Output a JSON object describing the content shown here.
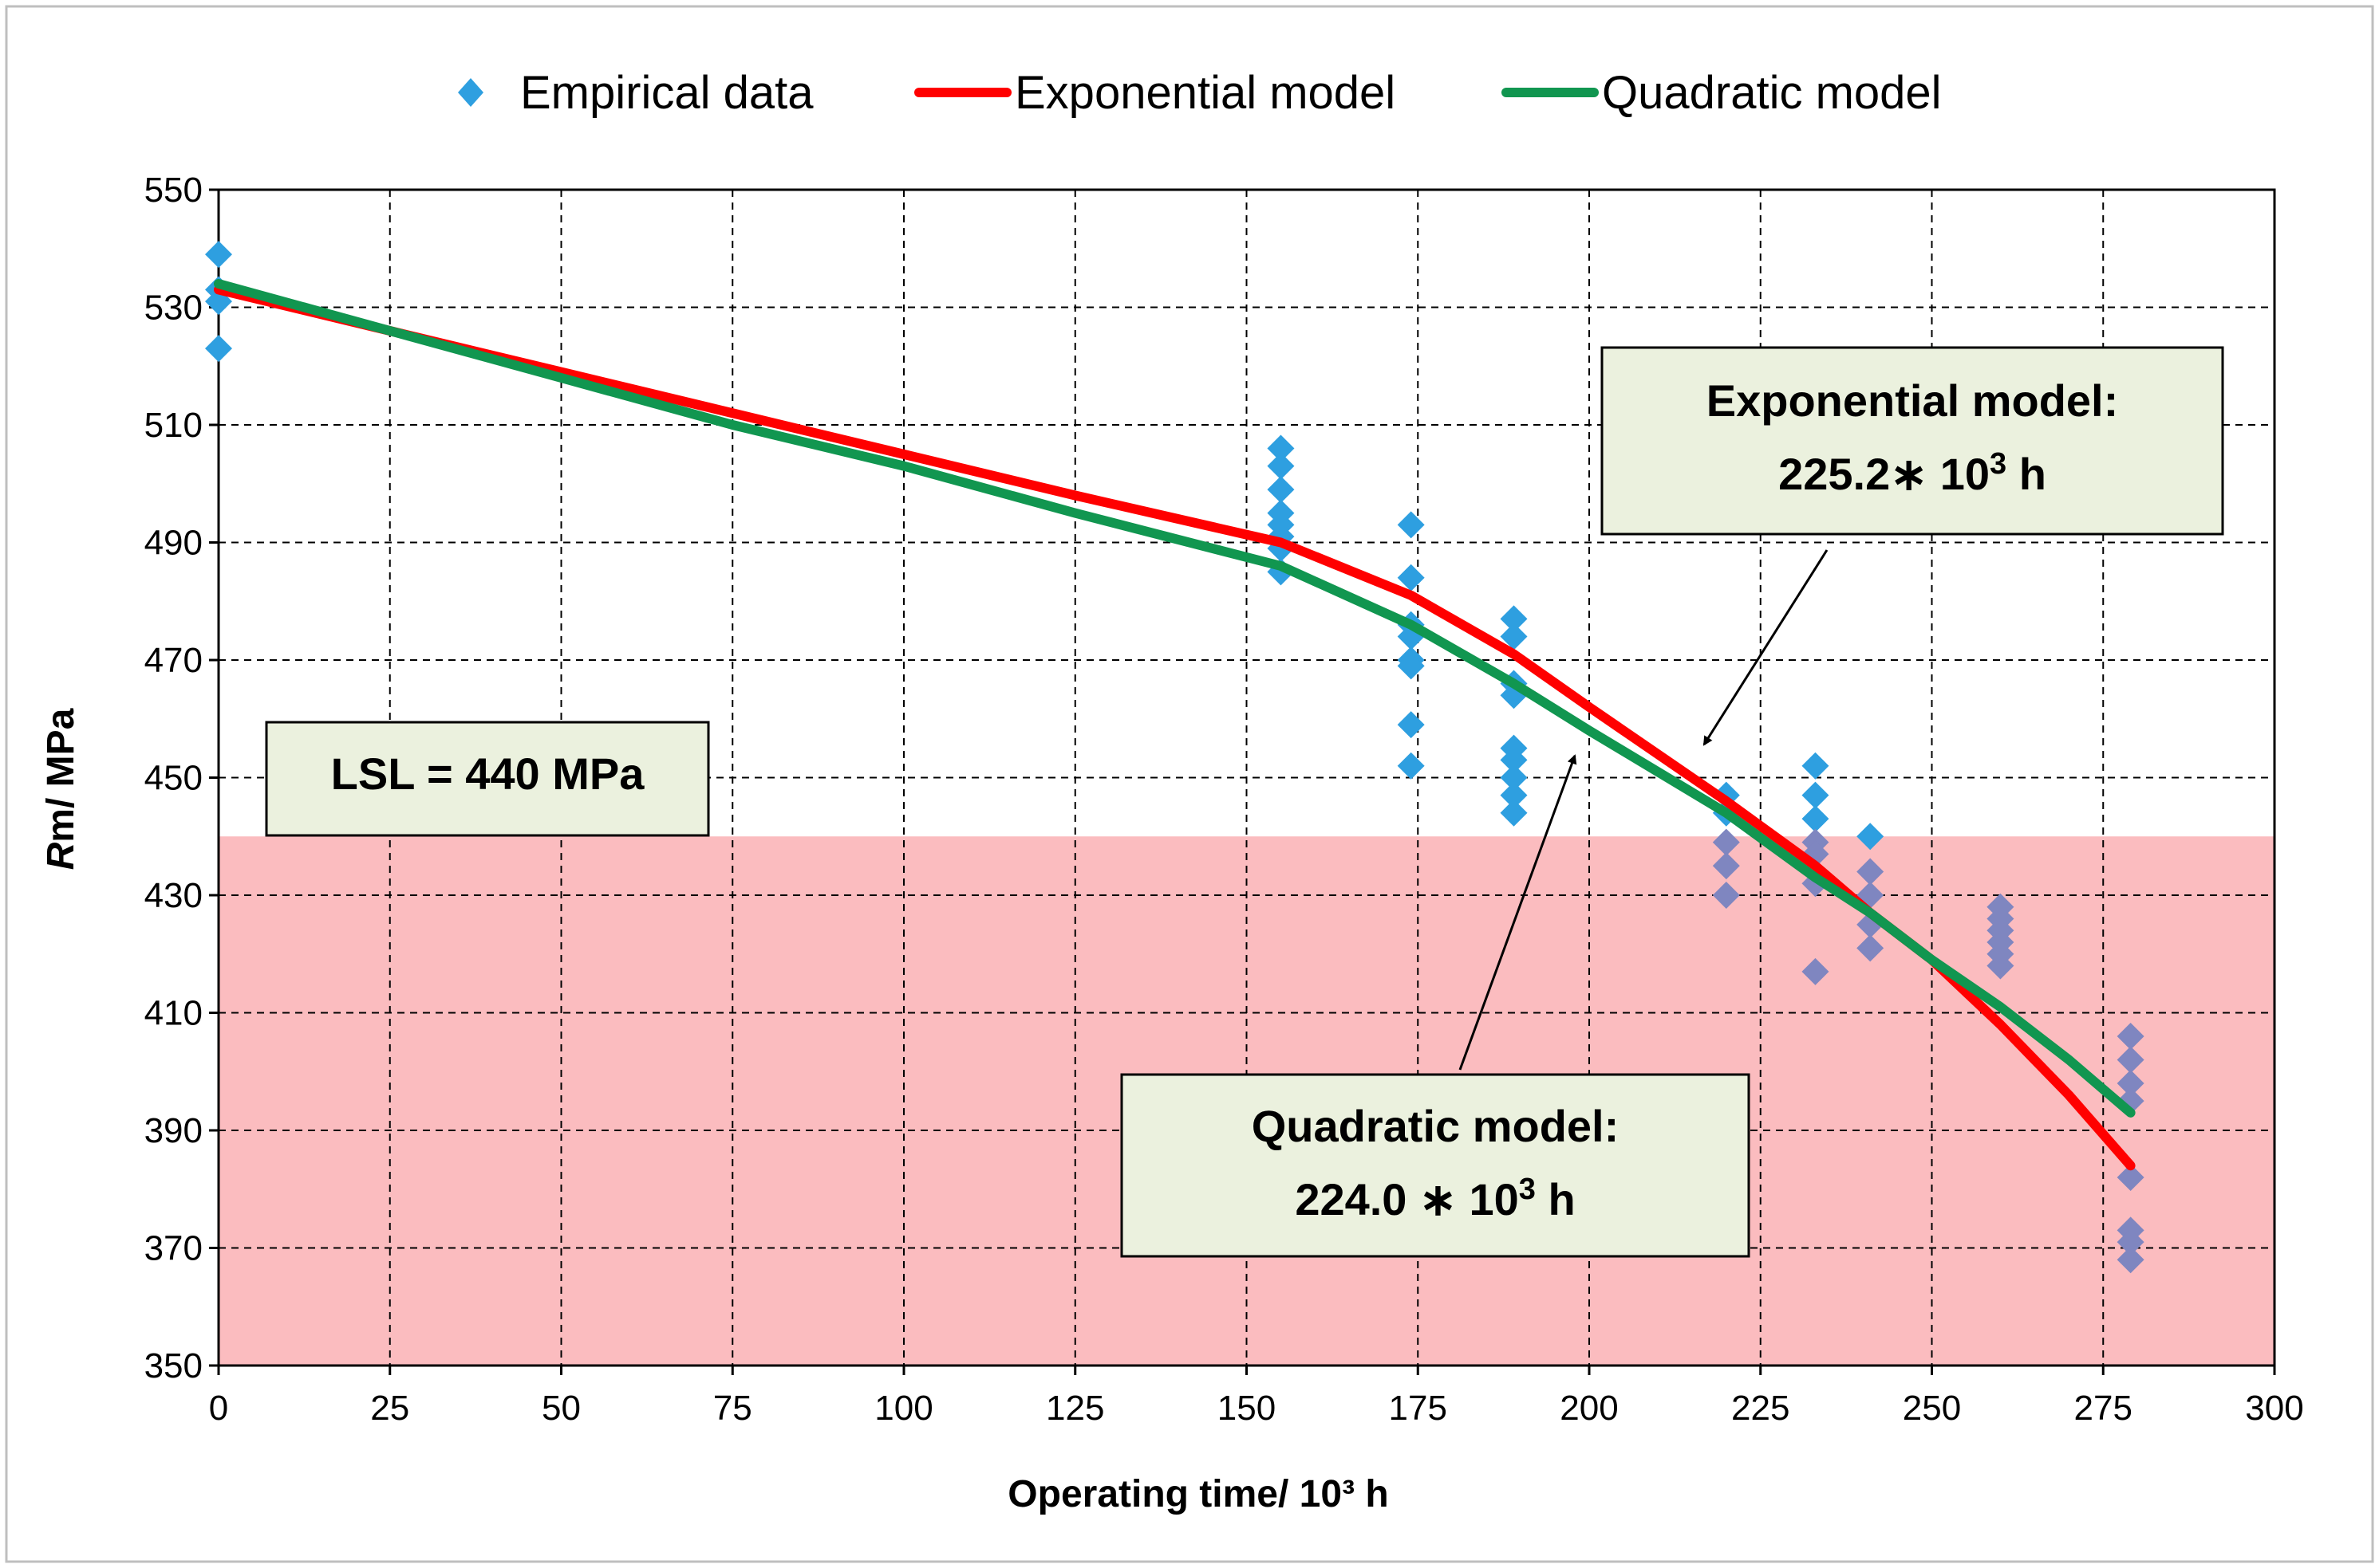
{
  "chart_data": {
    "type": "scatter",
    "xlabel": "Operating time/ 10³ h",
    "ylabel_italic": "R",
    "ylabel_rest": "m/ MPa",
    "xlim": [
      0,
      300
    ],
    "ylim": [
      350,
      550
    ],
    "x_ticks": [
      0,
      25,
      50,
      75,
      100,
      125,
      150,
      175,
      200,
      225,
      250,
      275,
      300
    ],
    "y_ticks": [
      350,
      370,
      390,
      410,
      430,
      450,
      470,
      490,
      510,
      530,
      550
    ],
    "grid": true,
    "legend_position": "top",
    "lsl_value": 440,
    "colors": {
      "empirical": "#2e9fe0",
      "empirical_below_lsl": "#7f86c0",
      "exponential": "#ff0000",
      "quadratic": "#119650",
      "lsl_band": "#fbbcbf",
      "box_fill": "#ebf1de"
    },
    "series": [
      {
        "name": "Empirical data",
        "kind": "points",
        "points": [
          [
            0,
            539
          ],
          [
            0,
            533
          ],
          [
            0,
            531
          ],
          [
            0,
            523
          ],
          [
            155,
            506
          ],
          [
            155,
            503
          ],
          [
            155,
            499
          ],
          [
            155,
            495
          ],
          [
            155,
            493
          ],
          [
            155,
            491
          ],
          [
            155,
            489
          ],
          [
            155,
            485
          ],
          [
            174,
            493
          ],
          [
            174,
            484
          ],
          [
            174,
            476
          ],
          [
            174,
            474
          ],
          [
            174,
            470
          ],
          [
            174,
            469
          ],
          [
            174,
            459
          ],
          [
            174,
            452
          ],
          [
            189,
            477
          ],
          [
            189,
            474
          ],
          [
            189,
            466
          ],
          [
            189,
            464
          ],
          [
            189,
            455
          ],
          [
            189,
            453
          ],
          [
            189,
            450
          ],
          [
            189,
            447
          ],
          [
            189,
            444
          ],
          [
            220,
            447
          ],
          [
            220,
            444
          ],
          [
            220,
            439
          ],
          [
            220,
            435
          ],
          [
            220,
            430
          ],
          [
            233,
            452
          ],
          [
            233,
            447
          ],
          [
            233,
            443
          ],
          [
            233,
            439
          ],
          [
            233,
            437
          ],
          [
            233,
            432
          ],
          [
            233,
            417
          ],
          [
            241,
            440
          ],
          [
            241,
            434
          ],
          [
            241,
            430
          ],
          [
            241,
            425
          ],
          [
            241,
            421
          ],
          [
            260,
            428
          ],
          [
            260,
            426
          ],
          [
            260,
            424
          ],
          [
            260,
            422
          ],
          [
            260,
            420
          ],
          [
            260,
            418
          ],
          [
            279,
            406
          ],
          [
            279,
            402
          ],
          [
            279,
            398
          ],
          [
            279,
            395
          ],
          [
            279,
            382
          ],
          [
            279,
            373
          ],
          [
            279,
            371
          ],
          [
            279,
            368
          ]
        ]
      },
      {
        "name": "Exponential model",
        "kind": "line",
        "points": [
          [
            0,
            533
          ],
          [
            25,
            526
          ],
          [
            50,
            519
          ],
          [
            75,
            512
          ],
          [
            100,
            505
          ],
          [
            125,
            498
          ],
          [
            155,
            490
          ],
          [
            174,
            481
          ],
          [
            189,
            471
          ],
          [
            200,
            462
          ],
          [
            220,
            446
          ],
          [
            233,
            435
          ],
          [
            241,
            427
          ],
          [
            250,
            419
          ],
          [
            260,
            408
          ],
          [
            270,
            396
          ],
          [
            279,
            384
          ]
        ]
      },
      {
        "name": "Quadratic model",
        "kind": "line",
        "points": [
          [
            0,
            534
          ],
          [
            25,
            526
          ],
          [
            50,
            518
          ],
          [
            75,
            510
          ],
          [
            100,
            503
          ],
          [
            125,
            495
          ],
          [
            155,
            486
          ],
          [
            174,
            476
          ],
          [
            189,
            466
          ],
          [
            200,
            458
          ],
          [
            220,
            444
          ],
          [
            233,
            433
          ],
          [
            241,
            427
          ],
          [
            250,
            419
          ],
          [
            260,
            411
          ],
          [
            270,
            402
          ],
          [
            279,
            393
          ]
        ]
      }
    ],
    "annotations": {
      "lsl_box": "LSL = 440 MPa",
      "exponential_box": {
        "line1": "Exponential model:",
        "line2_base": "225.2∗ 10",
        "line2_exp": "3",
        "line2_unit": " h"
      },
      "quadratic_box": {
        "line1": "Quadratic model:",
        "line2_base": "224.0 ∗ 10",
        "line2_exp": "3",
        "line2_unit": " h"
      }
    }
  }
}
